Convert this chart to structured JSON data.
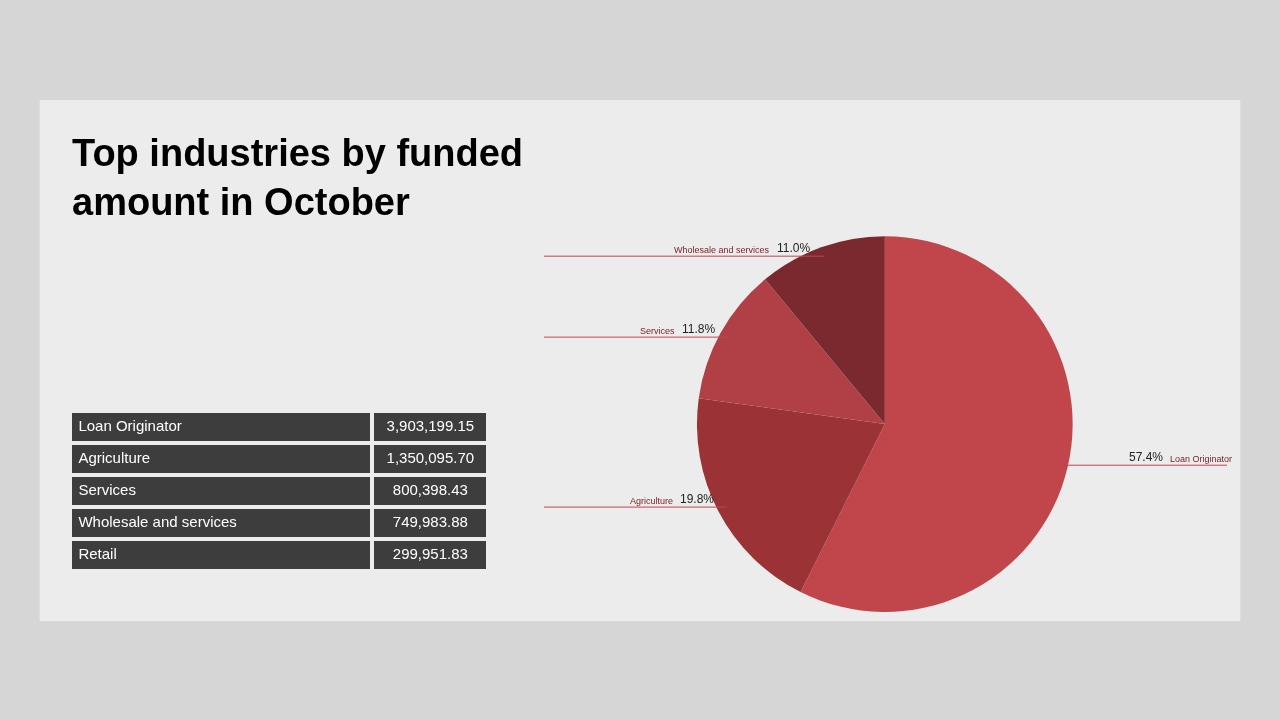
{
  "chart_data": [
    {
      "type": "other",
      "categories": [
        "Loan Originator",
        "Agriculture",
        "Services",
        "Wholesale and services",
        "Retail"
      ],
      "value_labels": [
        "3,903,199.15",
        "1,350,095.70",
        "800,398.43",
        "749,983.88",
        "299,951.83"
      ]
    },
    {
      "type": "pie",
      "title": "Top industries by funded amount in October",
      "categories": [
        "Loan Originator",
        "Agriculture",
        "Services",
        "Wholesale and services"
      ],
      "values": [
        57.4,
        19.8,
        11.8,
        11.0
      ],
      "value_labels": [
        "57.4%",
        "19.8%",
        "11.8%",
        "11.0%"
      ],
      "colors": [
        "#c0464b",
        "#9a3236",
        "#b04045",
        "#7a2a2f"
      ]
    }
  ]
}
